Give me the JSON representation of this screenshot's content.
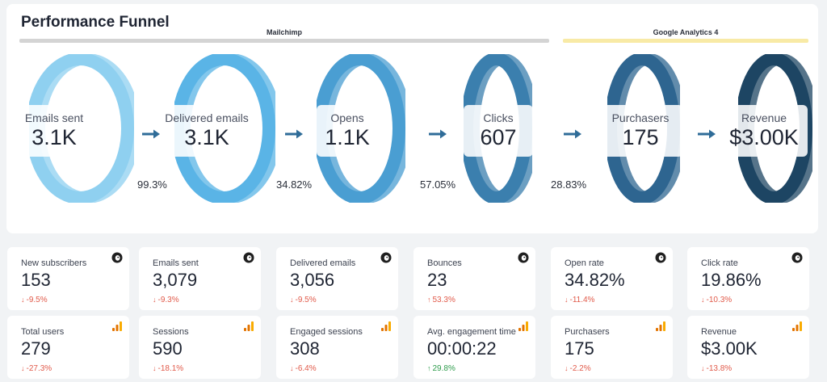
{
  "title": "Performance Funnel",
  "sources": [
    {
      "label": "Mailchimp",
      "color": "#d4d4d4"
    },
    {
      "label": "Google Analytics 4",
      "color": "#f8eaa6"
    }
  ],
  "funnel": [
    {
      "label": "Emails sent",
      "value": "3.1K",
      "color": "#8fd0f0"
    },
    {
      "label": "Delivered emails",
      "value": "3.1K",
      "color": "#5ab4e6"
    },
    {
      "label": "Opens",
      "value": "1.1K",
      "color": "#4a9ed2"
    },
    {
      "label": "Clicks",
      "value": "607",
      "color": "#3b7fae"
    },
    {
      "label": "Purchasers",
      "value": "175",
      "color": "#2e6590"
    },
    {
      "label": "Revenue",
      "value": "$3.00K",
      "color": "#1d4563"
    }
  ],
  "conversions": [
    "99.3%",
    "34.82%",
    "57.05%",
    "28.83%"
  ],
  "colors": {
    "arrow": "#2f6c98",
    "down": "#e15a4a",
    "up": "#2e9c4c"
  },
  "cards_row1": [
    {
      "label": "New subscribers",
      "value": "153",
      "delta": "-9.5%",
      "dir": "down",
      "icon": "mailchimp-icon"
    },
    {
      "label": "Emails sent",
      "value": "3,079",
      "delta": "-9.3%",
      "dir": "down",
      "icon": "mailchimp-icon"
    },
    {
      "label": "Delivered emails",
      "value": "3,056",
      "delta": "-9.5%",
      "dir": "down",
      "icon": "mailchimp-icon"
    },
    {
      "label": "Bounces",
      "value": "23",
      "delta": "53.3%",
      "dir": "up-bad",
      "icon": "mailchimp-icon"
    },
    {
      "label": "Open rate",
      "value": "34.82%",
      "delta": "-11.4%",
      "dir": "down",
      "icon": "mailchimp-icon"
    },
    {
      "label": "Click rate",
      "value": "19.86%",
      "delta": "-10.3%",
      "dir": "down",
      "icon": "mailchimp-icon"
    }
  ],
  "cards_row2": [
    {
      "label": "Total users",
      "value": "279",
      "delta": "-27.3%",
      "dir": "down",
      "icon": "google-analytics-icon"
    },
    {
      "label": "Sessions",
      "value": "590",
      "delta": "-18.1%",
      "dir": "down",
      "icon": "google-analytics-icon"
    },
    {
      "label": "Engaged sessions",
      "value": "308",
      "delta": "-6.4%",
      "dir": "down",
      "icon": "google-analytics-icon"
    },
    {
      "label": "Avg. engagement time",
      "value": "00:00:22",
      "delta": "29.8%",
      "dir": "up",
      "icon": "google-analytics-icon"
    },
    {
      "label": "Purchasers",
      "value": "175",
      "delta": "-2.2%",
      "dir": "down",
      "icon": "google-analytics-icon"
    },
    {
      "label": "Revenue",
      "value": "$3.00K",
      "delta": "-13.8%",
      "dir": "down",
      "icon": "google-analytics-icon"
    }
  ]
}
